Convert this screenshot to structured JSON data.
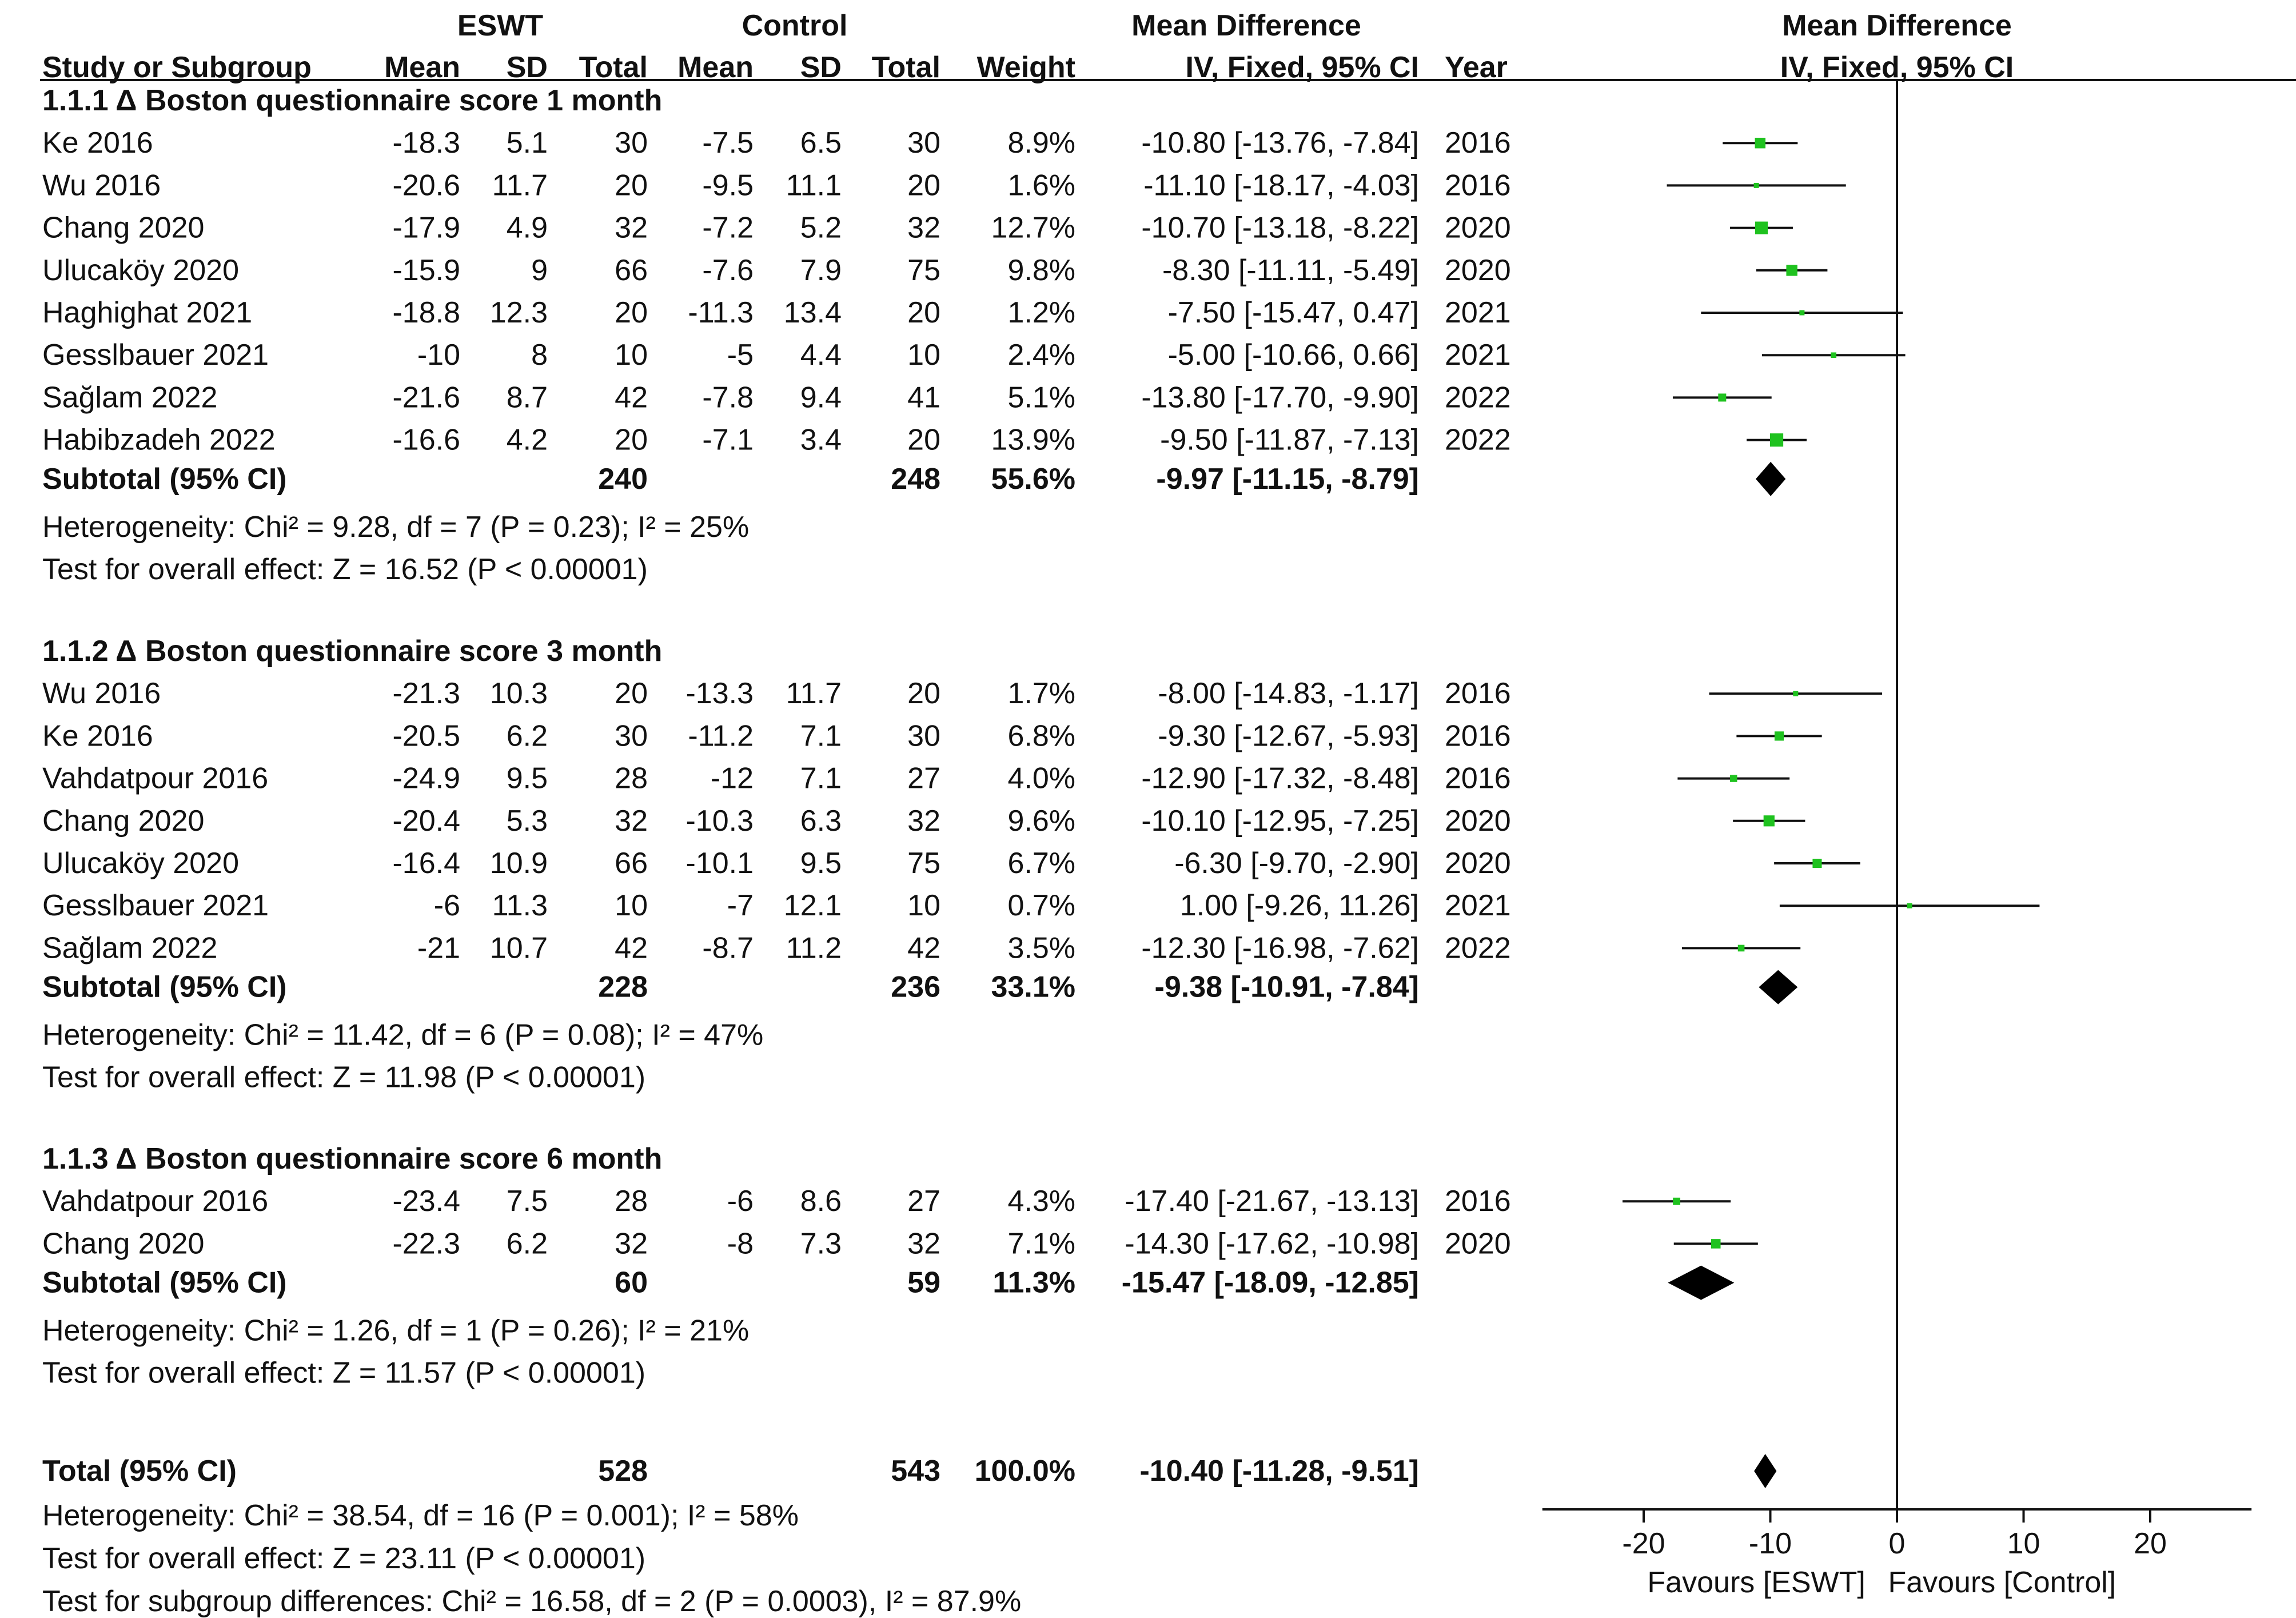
{
  "chart_data": {
    "type": "forest",
    "headers": {
      "group_eswt": "ESWT",
      "group_control": "Control",
      "group_md": "Mean Difference",
      "group_md_plot": "Mean Difference",
      "study": "Study or Subgroup",
      "mean1": "Mean",
      "sd1": "SD",
      "total1": "Total",
      "mean2": "Mean",
      "sd2": "SD",
      "total2": "Total",
      "weight": "Weight",
      "ci": "IV, Fixed, 95% CI",
      "year": "Year",
      "plot_ci": "IV, Fixed, 95% CI"
    },
    "subgroups": [
      {
        "title": "1.1.1 Δ Boston questionnaire score 1 month",
        "studies": [
          {
            "name": "Ke 2016",
            "mean1": "-18.3",
            "sd1": "5.1",
            "n1": "30",
            "mean2": "-7.5",
            "sd2": "6.5",
            "n2": "30",
            "weight": "8.9%",
            "ci": "-10.80 [-13.76, -7.84]",
            "year": "2016",
            "md": -10.8,
            "lo": -13.76,
            "hi": -7.84,
            "w": 8.9
          },
          {
            "name": "Wu 2016",
            "mean1": "-20.6",
            "sd1": "11.7",
            "n1": "20",
            "mean2": "-9.5",
            "sd2": "11.1",
            "n2": "20",
            "weight": "1.6%",
            "ci": "-11.10 [-18.17, -4.03]",
            "year": "2016",
            "md": -11.1,
            "lo": -18.17,
            "hi": -4.03,
            "w": 1.6
          },
          {
            "name": "Chang 2020",
            "mean1": "-17.9",
            "sd1": "4.9",
            "n1": "32",
            "mean2": "-7.2",
            "sd2": "5.2",
            "n2": "32",
            "weight": "12.7%",
            "ci": "-10.70 [-13.18, -8.22]",
            "year": "2020",
            "md": -10.7,
            "lo": -13.18,
            "hi": -8.22,
            "w": 12.7
          },
          {
            "name": "Ulucaköy 2020",
            "mean1": "-15.9",
            "sd1": "9",
            "n1": "66",
            "mean2": "-7.6",
            "sd2": "7.9",
            "n2": "75",
            "weight": "9.8%",
            "ci": "-8.30 [-11.11, -5.49]",
            "year": "2020",
            "md": -8.3,
            "lo": -11.11,
            "hi": -5.49,
            "w": 9.8
          },
          {
            "name": "Haghighat 2021",
            "mean1": "-18.8",
            "sd1": "12.3",
            "n1": "20",
            "mean2": "-11.3",
            "sd2": "13.4",
            "n2": "20",
            "weight": "1.2%",
            "ci": "-7.50 [-15.47, 0.47]",
            "year": "2021",
            "md": -7.5,
            "lo": -15.47,
            "hi": 0.47,
            "w": 1.2
          },
          {
            "name": "Gesslbauer 2021",
            "mean1": "-10",
            "sd1": "8",
            "n1": "10",
            "mean2": "-5",
            "sd2": "4.4",
            "n2": "10",
            "weight": "2.4%",
            "ci": "-5.00 [-10.66, 0.66]",
            "year": "2021",
            "md": -5.0,
            "lo": -10.66,
            "hi": 0.66,
            "w": 2.4
          },
          {
            "name": "Sağlam 2022",
            "mean1": "-21.6",
            "sd1": "8.7",
            "n1": "42",
            "mean2": "-7.8",
            "sd2": "9.4",
            "n2": "41",
            "weight": "5.1%",
            "ci": "-13.80 [-17.70, -9.90]",
            "year": "2022",
            "md": -13.8,
            "lo": -17.7,
            "hi": -9.9,
            "w": 5.1
          },
          {
            "name": "Habibzadeh 2022",
            "mean1": "-16.6",
            "sd1": "4.2",
            "n1": "20",
            "mean2": "-7.1",
            "sd2": "3.4",
            "n2": "20",
            "weight": "13.9%",
            "ci": "-9.50 [-11.87, -7.13]",
            "year": "2022",
            "md": -9.5,
            "lo": -11.87,
            "hi": -7.13,
            "w": 13.9
          }
        ],
        "subtotal": {
          "label": "Subtotal (95% CI)",
          "n1": "240",
          "n2": "248",
          "weight": "55.6%",
          "ci": "-9.97 [-11.15, -8.79]",
          "md": -9.97,
          "lo": -11.15,
          "hi": -8.79
        },
        "heterogeneity": "Heterogeneity: Chi² = 9.28, df = 7 (P = 0.23); I² = 25%",
        "overall": "Test for overall effect: Z = 16.52 (P < 0.00001)"
      },
      {
        "title": "1.1.2 Δ Boston questionnaire score 3 month",
        "studies": [
          {
            "name": "Wu 2016",
            "mean1": "-21.3",
            "sd1": "10.3",
            "n1": "20",
            "mean2": "-13.3",
            "sd2": "11.7",
            "n2": "20",
            "weight": "1.7%",
            "ci": "-8.00 [-14.83, -1.17]",
            "year": "2016",
            "md": -8.0,
            "lo": -14.83,
            "hi": -1.17,
            "w": 1.7
          },
          {
            "name": "Ke 2016",
            "mean1": "-20.5",
            "sd1": "6.2",
            "n1": "30",
            "mean2": "-11.2",
            "sd2": "7.1",
            "n2": "30",
            "weight": "6.8%",
            "ci": "-9.30 [-12.67, -5.93]",
            "year": "2016",
            "md": -9.3,
            "lo": -12.67,
            "hi": -5.93,
            "w": 6.8
          },
          {
            "name": "Vahdatpour 2016",
            "mean1": "-24.9",
            "sd1": "9.5",
            "n1": "28",
            "mean2": "-12",
            "sd2": "7.1",
            "n2": "27",
            "weight": "4.0%",
            "ci": "-12.90 [-17.32, -8.48]",
            "year": "2016",
            "md": -12.9,
            "lo": -17.32,
            "hi": -8.48,
            "w": 4.0
          },
          {
            "name": "Chang 2020",
            "mean1": "-20.4",
            "sd1": "5.3",
            "n1": "32",
            "mean2": "-10.3",
            "sd2": "6.3",
            "n2": "32",
            "weight": "9.6%",
            "ci": "-10.10 [-12.95, -7.25]",
            "year": "2020",
            "md": -10.1,
            "lo": -12.95,
            "hi": -7.25,
            "w": 9.6
          },
          {
            "name": "Ulucaköy 2020",
            "mean1": "-16.4",
            "sd1": "10.9",
            "n1": "66",
            "mean2": "-10.1",
            "sd2": "9.5",
            "n2": "75",
            "weight": "6.7%",
            "ci": "-6.30 [-9.70, -2.90]",
            "year": "2020",
            "md": -6.3,
            "lo": -9.7,
            "hi": -2.9,
            "w": 6.7
          },
          {
            "name": "Gesslbauer 2021",
            "mean1": "-6",
            "sd1": "11.3",
            "n1": "10",
            "mean2": "-7",
            "sd2": "12.1",
            "n2": "10",
            "weight": "0.7%",
            "ci": "1.00 [-9.26, 11.26]",
            "year": "2021",
            "md": 1.0,
            "lo": -9.26,
            "hi": 11.26,
            "w": 0.7
          },
          {
            "name": "Sağlam 2022",
            "mean1": "-21",
            "sd1": "10.7",
            "n1": "42",
            "mean2": "-8.7",
            "sd2": "11.2",
            "n2": "42",
            "weight": "3.5%",
            "ci": "-12.30 [-16.98, -7.62]",
            "year": "2022",
            "md": -12.3,
            "lo": -16.98,
            "hi": -7.62,
            "w": 3.5
          }
        ],
        "subtotal": {
          "label": "Subtotal (95% CI)",
          "n1": "228",
          "n2": "236",
          "weight": "33.1%",
          "ci": "-9.38 [-10.91, -7.84]",
          "md": -9.38,
          "lo": -10.91,
          "hi": -7.84
        },
        "heterogeneity": "Heterogeneity: Chi² = 11.42, df = 6 (P = 0.08); I² = 47%",
        "overall": "Test for overall effect: Z = 11.98 (P < 0.00001)"
      },
      {
        "title": "1.1.3 Δ Boston questionnaire score 6 month",
        "studies": [
          {
            "name": "Vahdatpour 2016",
            "mean1": "-23.4",
            "sd1": "7.5",
            "n1": "28",
            "mean2": "-6",
            "sd2": "8.6",
            "n2": "27",
            "weight": "4.3%",
            "ci": "-17.40 [-21.67, -13.13]",
            "year": "2016",
            "md": -17.4,
            "lo": -21.67,
            "hi": -13.13,
            "w": 4.3
          },
          {
            "name": "Chang 2020",
            "mean1": "-22.3",
            "sd1": "6.2",
            "n1": "32",
            "mean2": "-8",
            "sd2": "7.3",
            "n2": "32",
            "weight": "7.1%",
            "ci": "-14.30 [-17.62, -10.98]",
            "year": "2020",
            "md": -14.3,
            "lo": -17.62,
            "hi": -10.98,
            "w": 7.1
          }
        ],
        "subtotal": {
          "label": "Subtotal (95% CI)",
          "n1": "60",
          "n2": "59",
          "weight": "11.3%",
          "ci": "-15.47 [-18.09, -12.85]",
          "md": -15.47,
          "lo": -18.09,
          "hi": -12.85
        },
        "heterogeneity": "Heterogeneity: Chi² = 1.26, df = 1 (P = 0.26); I² = 21%",
        "overall": "Test for overall effect: Z = 11.57 (P < 0.00001)"
      }
    ],
    "total": {
      "label": "Total (95% CI)",
      "n1": "528",
      "n2": "543",
      "weight": "100.0%",
      "ci": "-10.40 [-11.28, -9.51]",
      "md": -10.4,
      "lo": -11.28,
      "hi": -9.51
    },
    "footer": [
      "Heterogeneity: Chi² = 38.54, df = 16 (P = 0.001); I² = 58%",
      "Test for overall effect: Z = 23.11 (P < 0.00001)",
      "Test for subgroup differences: Chi² = 16.58, df = 2 (P = 0.0003), I² = 87.9%"
    ],
    "x_axis": {
      "range": [
        -28,
        28
      ],
      "ticks": [
        -20,
        -10,
        0,
        10,
        20
      ],
      "tick_labels": [
        "-20",
        "-10",
        "0",
        "10",
        "20"
      ]
    },
    "favours_left": "Favours [ESWT]",
    "favours_right": "Favours [Control]",
    "colors": {
      "square": "#1fc21f",
      "line": "#111111",
      "diamond": "#000000"
    }
  }
}
